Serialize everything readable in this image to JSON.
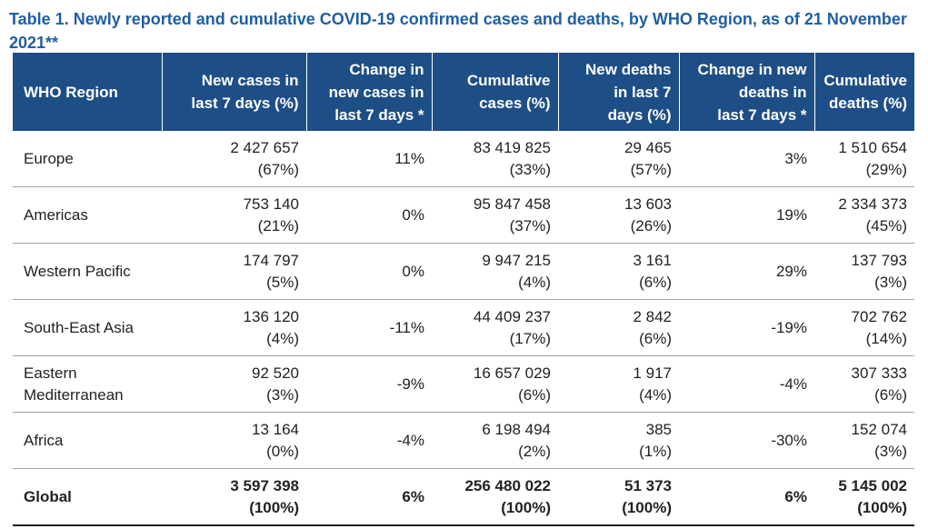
{
  "title": "Table 1. Newly reported and cumulative COVID-19 confirmed cases and deaths, by WHO Region, as of 21 November 2021**",
  "header": {
    "region": [
      "WHO Region"
    ],
    "new_cases": [
      "New cases in",
      "last 7 days (%)"
    ],
    "change_cases": [
      "Change in",
      "new cases in",
      "last 7 days *"
    ],
    "cum_cases": [
      "Cumulative",
      "cases (%)"
    ],
    "new_deaths": [
      "New deaths",
      "in last 7",
      "days (%)"
    ],
    "change_deaths": [
      "Change in new",
      "deaths in",
      "last 7 days *"
    ],
    "cum_deaths": [
      "Cumulative",
      "deaths (%)"
    ]
  },
  "rows": [
    {
      "region": [
        "Europe"
      ],
      "new_cases": [
        "2 427 657",
        "(67%)"
      ],
      "change_cases": "11%",
      "cum_cases": [
        "83 419 825",
        "(33%)"
      ],
      "new_deaths": [
        "29 465",
        "(57%)"
      ],
      "change_deaths": "3%",
      "cum_deaths": [
        "1 510 654",
        "(29%)"
      ]
    },
    {
      "region": [
        "Americas"
      ],
      "new_cases": [
        "753 140",
        "(21%)"
      ],
      "change_cases": "0%",
      "cum_cases": [
        "95 847 458",
        "(37%)"
      ],
      "new_deaths": [
        "13 603",
        "(26%)"
      ],
      "change_deaths": "19%",
      "cum_deaths": [
        "2 334 373",
        "(45%)"
      ]
    },
    {
      "region": [
        "Western Pacific"
      ],
      "new_cases": [
        "174 797",
        "(5%)"
      ],
      "change_cases": "0%",
      "cum_cases": [
        "9 947 215",
        "(4%)"
      ],
      "new_deaths": [
        "3 161",
        "(6%)"
      ],
      "change_deaths": "29%",
      "cum_deaths": [
        "137 793",
        "(3%)"
      ]
    },
    {
      "region": [
        "South-East Asia"
      ],
      "new_cases": [
        "136 120",
        "(4%)"
      ],
      "change_cases": "-11%",
      "cum_cases": [
        "44 409 237",
        "(17%)"
      ],
      "new_deaths": [
        "2 842",
        "(6%)"
      ],
      "change_deaths": "-19%",
      "cum_deaths": [
        "702 762",
        "(14%)"
      ]
    },
    {
      "region": [
        "Eastern",
        "Mediterranean"
      ],
      "new_cases": [
        "92 520",
        "(3%)"
      ],
      "change_cases": "-9%",
      "cum_cases": [
        "16 657 029",
        "(6%)"
      ],
      "new_deaths": [
        "1 917",
        "(4%)"
      ],
      "change_deaths": "-4%",
      "cum_deaths": [
        "307 333",
        "(6%)"
      ]
    },
    {
      "region": [
        "Africa"
      ],
      "new_cases": [
        "13 164",
        "(0%)"
      ],
      "change_cases": "-4%",
      "cum_cases": [
        "6 198 494",
        "(2%)"
      ],
      "new_deaths": [
        "385",
        "(1%)"
      ],
      "change_deaths": "-30%",
      "cum_deaths": [
        "152 074",
        "(3%)"
      ]
    }
  ],
  "global": {
    "region": [
      "Global"
    ],
    "new_cases": [
      "3 597 398",
      "(100%)"
    ],
    "change_cases": "6%",
    "cum_cases": [
      "256 480 022",
      "(100%)"
    ],
    "new_deaths": [
      "51 373",
      "(100%)"
    ],
    "change_deaths": "6%",
    "cum_deaths": [
      "5 145 002",
      "(100%)"
    ]
  },
  "colors": {
    "header_bg": "#1e4e86",
    "title": "#1f5fa3"
  }
}
